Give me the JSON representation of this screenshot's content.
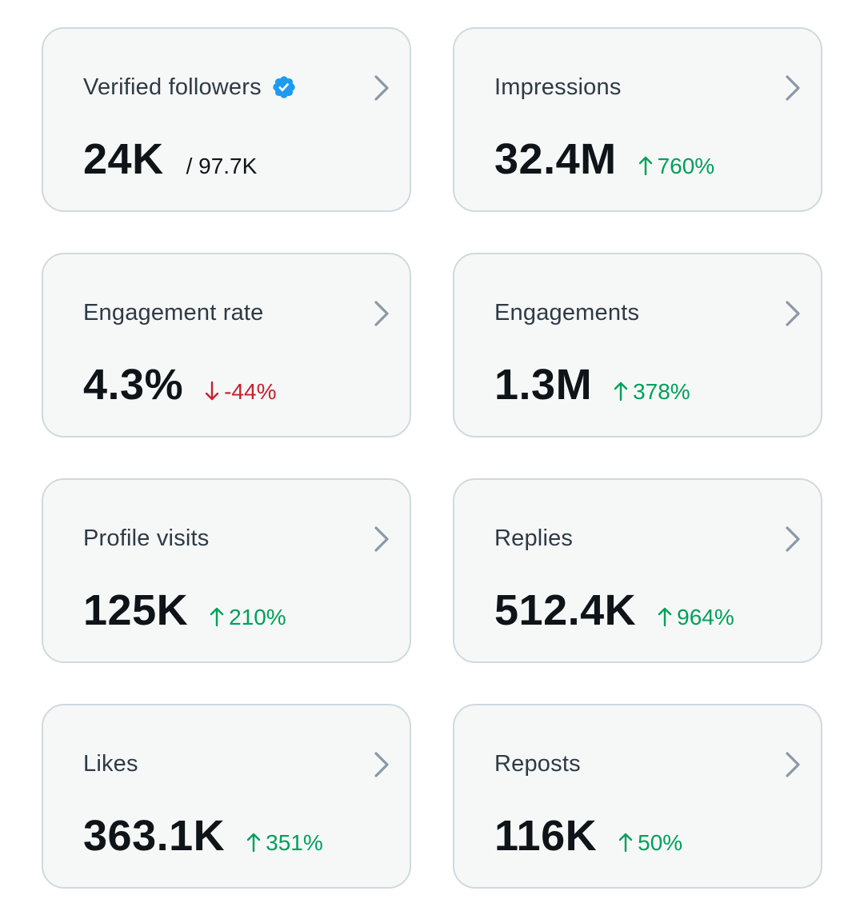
{
  "colors": {
    "card_bg": "#f6f8f8",
    "card_border": "#cfd9de",
    "positive": "#00a05a",
    "negative": "#c8202d",
    "verified_blue": "#1d9bf0",
    "chevron": "#8b98a5"
  },
  "cards": [
    {
      "title": "Verified followers",
      "icon": "verified-badge-icon",
      "value": "24K",
      "sub": "/ 97.7K"
    },
    {
      "title": "Impressions",
      "value": "32.4M",
      "change": "760%",
      "direction": "up"
    },
    {
      "title": "Engagement rate",
      "value": "4.3%",
      "change": "-44%",
      "direction": "down"
    },
    {
      "title": "Engagements",
      "value": "1.3M",
      "change": "378%",
      "direction": "up"
    },
    {
      "title": "Profile visits",
      "value": "125K",
      "change": "210%",
      "direction": "up"
    },
    {
      "title": "Replies",
      "value": "512.4K",
      "change": "964%",
      "direction": "up"
    },
    {
      "title": "Likes",
      "value": "363.1K",
      "change": "351%",
      "direction": "up"
    },
    {
      "title": "Reposts",
      "value": "116K",
      "change": "50%",
      "direction": "up"
    }
  ]
}
